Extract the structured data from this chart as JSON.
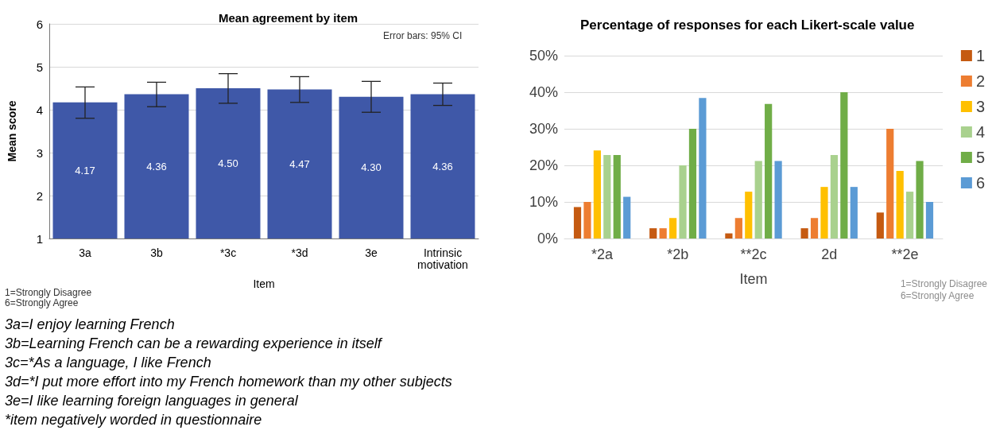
{
  "chart_data": [
    {
      "type": "bar",
      "title": "Mean agreement by item",
      "xlabel": "Item",
      "ylabel": "Mean score",
      "categories": [
        "3a",
        "3b",
        "*3c",
        "*3d",
        "3e",
        "Intrinsic\nmotivation"
      ],
      "values": [
        4.17,
        4.36,
        4.5,
        4.47,
        4.3,
        4.36
      ],
      "value_labels": [
        "4.17",
        "4.36",
        "4.50",
        "4.47",
        "4.30",
        "4.36"
      ],
      "errors": [
        [
          3.8,
          4.53
        ],
        [
          4.07,
          4.64
        ],
        [
          4.15,
          4.84
        ],
        [
          4.17,
          4.77
        ],
        [
          3.94,
          4.66
        ],
        [
          4.1,
          4.62
        ]
      ],
      "color": "#3f58a8",
      "ylim": [
        1,
        6
      ],
      "yticks": [
        1,
        2,
        3,
        4,
        5,
        6
      ],
      "grid": "y",
      "legend": false,
      "annotations": [
        "Error bars: 95% CI",
        "1=Strongly Disagree\n6=Strongly Agree",
        "3a=I enjoy learning French",
        "3b=Learning French can be a rewarding experience in itself",
        "3c=*As a language, I like French",
        "3d=*I put more effort into my French homework than my other subjects",
        "3e=I like learning foreign languages in general",
        "*item negatively worded in questionnaire"
      ]
    },
    {
      "type": "bar",
      "title": "Percentage of responses for each Likert-scale value",
      "xlabel": "Item",
      "categories": [
        "*2a",
        "*2b",
        "**2c",
        "2d",
        "**2e"
      ],
      "series": [
        {
          "name": "1",
          "color": "#c55a11",
          "values": [
            8.6,
            2.8,
            1.4,
            2.8,
            7.1
          ]
        },
        {
          "name": "2",
          "color": "#ed7d31",
          "values": [
            10,
            2.8,
            5.6,
            5.6,
            30
          ]
        },
        {
          "name": "3",
          "color": "#ffc000",
          "values": [
            24.1,
            5.6,
            12.8,
            14.1,
            18.5
          ]
        },
        {
          "name": "4",
          "color": "#a9d18e",
          "values": [
            22.8,
            20,
            21.2,
            22.8,
            12.8
          ]
        },
        {
          "name": "5",
          "color": "#70ad47",
          "values": [
            22.8,
            30,
            36.8,
            40,
            21.2
          ]
        },
        {
          "name": "6",
          "color": "#5b9bd5",
          "values": [
            11.4,
            38.4,
            21.2,
            14.1,
            10
          ]
        }
      ],
      "ylim": [
        0,
        50
      ],
      "yticks": [
        {
          "value": 0,
          "label": "0%"
        },
        {
          "value": 10,
          "label": "10%"
        },
        {
          "value": 20,
          "label": "20%"
        },
        {
          "value": 30,
          "label": "30%"
        },
        {
          "value": 40,
          "label": "40%"
        },
        {
          "value": 50,
          "label": "50%"
        }
      ],
      "grid": "y",
      "legend": "right",
      "annotations": [
        "1=Strongly Disagree\n6=Strongly Agree"
      ]
    }
  ]
}
